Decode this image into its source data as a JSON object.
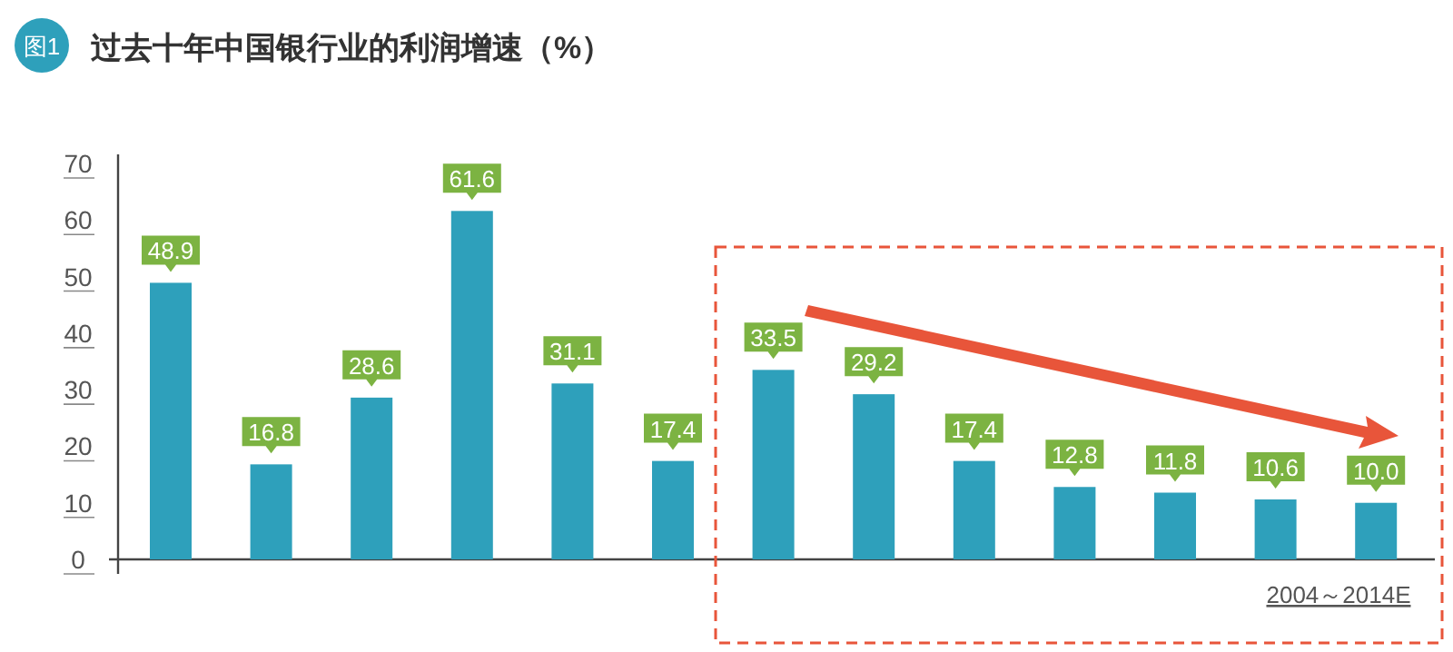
{
  "chart_data": {
    "type": "bar",
    "title": "过去十年中国银行业的利润增速（%）",
    "annotations": [
      "图1",
      "2004～2014E"
    ],
    "categories": [
      null,
      null,
      null,
      null,
      null,
      null,
      null,
      null,
      null,
      null,
      null,
      null,
      null
    ],
    "values": [
      48.9,
      16.8,
      28.6,
      61.6,
      31.1,
      17.4,
      33.5,
      29.2,
      17.4,
      12.8,
      11.8,
      10.6,
      10.0
    ],
    "color": "#2ea0bb",
    "ylim": [
      0,
      70
    ],
    "yticks": [
      0,
      10,
      20,
      30,
      40,
      50,
      60,
      70
    ],
    "value_labels": [
      "48.9",
      "16.8",
      "28.6",
      "61.6",
      "31.1",
      "17.4",
      "33.5",
      "29.2",
      "17.4",
      "12.8",
      "11.8",
      "10.6",
      "10.0"
    ]
  }
}
